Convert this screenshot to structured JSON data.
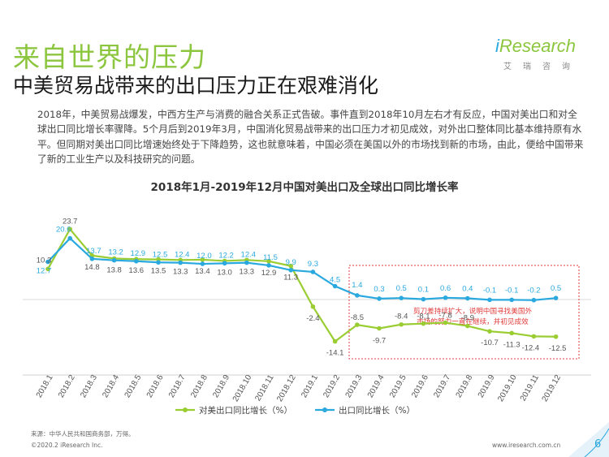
{
  "header": {
    "title": "来自世界的压力",
    "subtitle": "中美贸易战带来的出口压力正在艰难消化"
  },
  "logo": {
    "prefix": "i",
    "main": "Research",
    "sub": "艾瑞咨询"
  },
  "paragraph": "2018年，中美贸易战爆发，中西方生产与消费的融合关系正式告破。事件直到2018年10月左右才有反应，中国对美出口和对全球出口同比增长率骤降。5个月后到2019年3月，中国消化贸易战带来的出口压力才初见成效，对外出口整体同比基本维持原有水平。但同期对美出口同比增速始终处于下降趋势，这也就意味着，中国必须在美国以外的市场找到新的市场，由此，便给中国带来了新的工业生产以及科技研究的问题。",
  "chart_data": {
    "type": "line",
    "title": "2018年1月-2019年12月中国对美出口及全球出口同比增长率",
    "categories": [
      "2018.1",
      "2018.2",
      "2018.3",
      "2018.4",
      "2018.5",
      "2018.6",
      "2018.7",
      "2018.8",
      "2018.9",
      "2018.10",
      "2018.11",
      "2018.12",
      "2019.1",
      "2019.2",
      "2019.3",
      "2019.4",
      "2019.5",
      "2019.6",
      "2019.7",
      "2019.8",
      "2019.9",
      "2019.10",
      "2019.11",
      "2019.12"
    ],
    "series": [
      {
        "name": "对美出口同比增长（%）",
        "color": "#9acd32",
        "values": [
          10.3,
          23.7,
          14.8,
          13.8,
          13.6,
          13.5,
          13.3,
          13.4,
          13.0,
          13.3,
          12.9,
          11.3,
          -2.4,
          -14.1,
          -8.5,
          -9.7,
          -8.4,
          -8.1,
          -7.8,
          -8.9,
          -10.7,
          -11.3,
          -12.4,
          -12.5
        ],
        "labels": [
          "10.3",
          "23.7",
          "14.8",
          "13.8",
          "13.6",
          "13.5",
          "13.3",
          "13.4",
          "13.0",
          "13.3",
          "12.9",
          "11.3",
          "-2.4",
          "-14.1",
          "-8.5",
          "-9.7",
          "-8.4",
          "-8.1",
          "-7.8",
          "-8.9",
          "-10.7",
          "-11.3",
          "-12.4",
          "-12.5"
        ]
      },
      {
        "name": "出口同比增长（%）",
        "color": "#2aa9df",
        "values": [
          12.7,
          20.6,
          13.7,
          13.2,
          12.9,
          12.5,
          12.4,
          12.0,
          12.2,
          12.4,
          11.5,
          9.9,
          9.3,
          4.5,
          1.4,
          0.3,
          0.5,
          0.1,
          0.6,
          0.4,
          -0.1,
          -0.1,
          -0.2,
          0.5
        ],
        "labels": [
          "12.7",
          "20.6",
          "13.7",
          "13.2",
          "12.9",
          "12.5",
          "12.4",
          "12.0",
          "12.2",
          "12.4",
          "11.5",
          "9.9",
          "9.3",
          "4.5",
          "1.4",
          "0.3",
          "0.5",
          "0.1",
          "0.6",
          "0.4",
          "-0.1",
          "-0.1",
          "-0.2",
          "0.5"
        ]
      }
    ],
    "annotation": {
      "text_lines": [
        "剪刀差持续扩大，说明中国寻找美国外",
        "市场的努力一直在继续，并初见成效"
      ],
      "color": "#e23b3b"
    },
    "ylim": [
      -17,
      27
    ],
    "grid": false,
    "legend": "bottom"
  },
  "footer": {
    "source": "来源：中华人民共和国商务部，万得。",
    "copyright": "©2020.2 iResearch Inc.",
    "website": "www.iresearch.com.cn",
    "page": "6"
  }
}
